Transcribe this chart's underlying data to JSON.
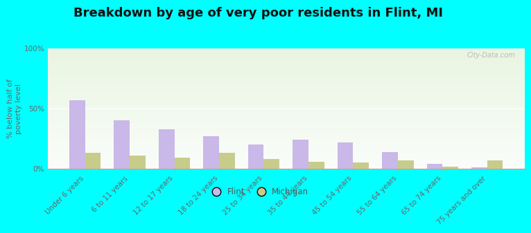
{
  "title": "Breakdown by age of very poor residents in Flint, MI",
  "ylabel": "% below half of\npoverty level",
  "categories": [
    "Under 6 years",
    "6 to 11 years",
    "12 to 17 years",
    "18 to 24 years",
    "25 to 34 years",
    "35 to 44 years",
    "45 to 54 years",
    "55 to 64 years",
    "65 to 74 years",
    "75 years and over"
  ],
  "flint_values": [
    57,
    40,
    33,
    27,
    20,
    24,
    22,
    14,
    4,
    1
  ],
  "michigan_values": [
    13,
    11,
    9,
    13,
    8,
    6,
    5,
    7,
    2,
    7
  ],
  "flint_color": "#c9b8e8",
  "michigan_color": "#c8cc8a",
  "background_color": "#00ffff",
  "ylim": [
    0,
    100
  ],
  "yticks": [
    0,
    50,
    100
  ],
  "ytick_labels": [
    "0%",
    "50%",
    "100%"
  ],
  "bar_width": 0.35,
  "title_fontsize": 13,
  "axis_label_fontsize": 8,
  "tick_fontsize": 7.5,
  "legend_labels": [
    "Flint",
    "Michigan"
  ],
  "watermark": "City-Data.com"
}
